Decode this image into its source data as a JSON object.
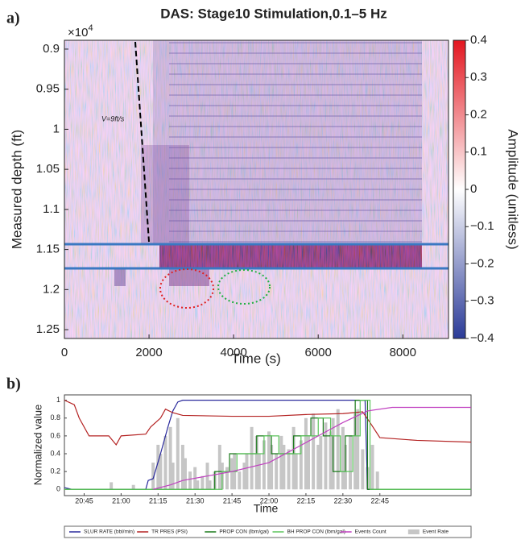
{
  "chart_data": [
    {
      "type": "heatmap",
      "panel_label": "a)",
      "title": "DAS: Stage10 Stimulation,0.1–5 Hz",
      "xlabel": "Time (s)",
      "ylabel": "Measured depth (ft)",
      "y_offset_base": "×10",
      "y_offset_exponent": "4",
      "xlim": [
        0,
        9080
      ],
      "xticks": [
        0,
        2000,
        4000,
        6000,
        8000
      ],
      "ylim": [
        0.889,
        1.261
      ],
      "yticks": [
        0.9,
        0.95,
        1,
        1.05,
        1.1,
        1.15,
        1.2,
        1.25
      ],
      "y_reversed": true,
      "colorbar_label": "Amplitude (unitless)",
      "clim": [
        -0.4,
        0.4
      ],
      "cticks": [
        {
          "value": -0.4,
          "label": "−0.4"
        },
        {
          "value": -0.3,
          "label": "−0.3"
        },
        {
          "value": -0.2,
          "label": "−0.2"
        },
        {
          "value": -0.1,
          "label": "−0.1"
        },
        0,
        0.1,
        0.2,
        0.3,
        0.4
      ],
      "colormap": [
        "#2b3b98",
        "#ffffff",
        "#e3161f"
      ],
      "annotation": "V=9ft/s"
    },
    {
      "type": "line",
      "panel_label": "b)",
      "xlabel": "Time",
      "ylabel": "Normalized value",
      "xlim": [
        "20:37",
        "23:22"
      ],
      "xticks": [
        "20:45",
        "21:00",
        "21:15",
        "21:30",
        "21:45",
        "22:00",
        "22:15",
        "22:30",
        "22:45"
      ],
      "ylim": [
        -0.07,
        1.06
      ],
      "yticks": [
        0,
        0.2,
        0.4,
        0.6,
        0.8,
        1
      ],
      "series": [
        {
          "name": "Event Rate",
          "kind": "bar",
          "color": "#c6c6c6",
          "x": [
            "20:56",
            "21:05",
            "21:13",
            "21:15",
            "21:16",
            "21:18",
            "21:20",
            "21:21",
            "21:23",
            "21:25",
            "21:26",
            "21:28",
            "21:30",
            "21:31",
            "21:33",
            "21:35",
            "21:36",
            "21:38",
            "21:40",
            "21:41",
            "21:43",
            "21:45",
            "21:46",
            "21:48",
            "21:50",
            "21:51",
            "21:53",
            "21:55",
            "21:56",
            "21:58",
            "22:00",
            "22:01",
            "22:03",
            "22:05",
            "22:06",
            "22:08",
            "22:10",
            "22:11",
            "22:13",
            "22:15",
            "22:16",
            "22:18",
            "22:20",
            "22:21",
            "22:23",
            "22:25",
            "22:26",
            "22:28",
            "22:30",
            "22:31",
            "22:33",
            "22:35",
            "22:36",
            "22:38",
            "22:40",
            "22:42",
            "22:44"
          ],
          "values": [
            0.08,
            0.05,
            0.3,
            0.5,
            0.4,
            0.6,
            0.7,
            0.3,
            0.8,
            0.5,
            0.35,
            0.2,
            0.25,
            0.1,
            0.15,
            0.3,
            0.1,
            0.2,
            0.5,
            0.3,
            0.25,
            0.35,
            0.4,
            0.2,
            0.3,
            0.4,
            0.7,
            0.6,
            0.4,
            0.55,
            0.65,
            0.5,
            0.4,
            0.6,
            0.5,
            0.45,
            0.7,
            0.4,
            0.55,
            0.8,
            0.6,
            0.85,
            0.5,
            0.6,
            0.75,
            0.65,
            0.8,
            0.9,
            0.7,
            0.5,
            0.6,
            0.85,
            0.9,
            0.45,
            0.25,
            0.5,
            0.2
          ]
        },
        {
          "name": "SLUR RATE (bbl/min)",
          "kind": "line",
          "color": "#2a2a9c",
          "x": [
            "20:37",
            "20:40",
            "21:10",
            "21:11",
            "21:13",
            "21:16",
            "21:19",
            "21:21",
            "21:23",
            "21:25",
            "22:39",
            "22:40",
            "22:42"
          ],
          "values": [
            0.02,
            0,
            0,
            0.1,
            0.12,
            0.4,
            0.7,
            0.88,
            0.98,
            1,
            1,
            0,
            0
          ]
        },
        {
          "name": "TR PRES (PSI)",
          "kind": "line",
          "color": "#b42222",
          "x": [
            "20:37",
            "20:41",
            "20:43",
            "20:47",
            "20:55",
            "20:58",
            "21:00",
            "21:10",
            "21:12",
            "21:14",
            "21:16",
            "21:18",
            "21:21",
            "21:25",
            "21:45",
            "22:00",
            "22:15",
            "22:30",
            "22:38",
            "22:41",
            "22:45",
            "23:00",
            "23:22"
          ],
          "values": [
            1,
            0.95,
            0.8,
            0.6,
            0.6,
            0.5,
            0.6,
            0.62,
            0.7,
            0.75,
            0.8,
            0.9,
            0.86,
            0.83,
            0.82,
            0.82,
            0.84,
            0.85,
            0.87,
            0.75,
            0.58,
            0.55,
            0.53
          ]
        },
        {
          "name": "PROP CON (lbm/gal)",
          "kind": "line",
          "color": "#1a7a1a",
          "x": [
            "20:37",
            "21:38",
            "21:38",
            "21:44",
            "21:44",
            "21:55",
            "21:55",
            "22:01",
            "22:01",
            "22:10",
            "22:10",
            "22:17",
            "22:17",
            "22:22",
            "22:22",
            "22:26",
            "22:26",
            "22:31",
            "22:31",
            "22:35",
            "22:35",
            "22:40",
            "22:40",
            "23:22"
          ],
          "values": [
            0,
            0,
            0.2,
            0.2,
            0.4,
            0.4,
            0.6,
            0.6,
            0.4,
            0.4,
            0.6,
            0.6,
            0.8,
            0.8,
            0.6,
            0.6,
            0.2,
            0.2,
            0.6,
            0.6,
            1,
            1,
            0,
            0
          ]
        },
        {
          "name": "BH PROP CON (lbm/gal)",
          "kind": "line",
          "color": "#5cc45c",
          "x": [
            "20:37",
            "21:41",
            "21:41",
            "21:47",
            "21:47",
            "21:58",
            "21:58",
            "22:04",
            "22:04",
            "22:13",
            "22:13",
            "22:20",
            "22:20",
            "22:25",
            "22:25",
            "22:29",
            "22:29",
            "22:34",
            "22:34",
            "22:37",
            "22:37",
            "22:41",
            "22:41",
            "23:22"
          ],
          "values": [
            0,
            0,
            0.2,
            0.2,
            0.4,
            0.4,
            0.6,
            0.6,
            0.4,
            0.4,
            0.6,
            0.6,
            0.8,
            0.8,
            0.6,
            0.6,
            0.2,
            0.2,
            0.6,
            0.6,
            1,
            1,
            0,
            0
          ]
        },
        {
          "name": "Events Count",
          "kind": "line",
          "color": "#c040c0",
          "x": [
            "21:13",
            "21:20",
            "21:25",
            "21:35",
            "21:45",
            "22:00",
            "22:10",
            "22:20",
            "22:30",
            "22:40",
            "22:50",
            "23:22"
          ],
          "values": [
            0,
            0.05,
            0.1,
            0.15,
            0.2,
            0.3,
            0.45,
            0.6,
            0.75,
            0.88,
            0.92,
            0.92
          ]
        }
      ],
      "legend_order": [
        1,
        2,
        3,
        4,
        5,
        0
      ]
    }
  ]
}
